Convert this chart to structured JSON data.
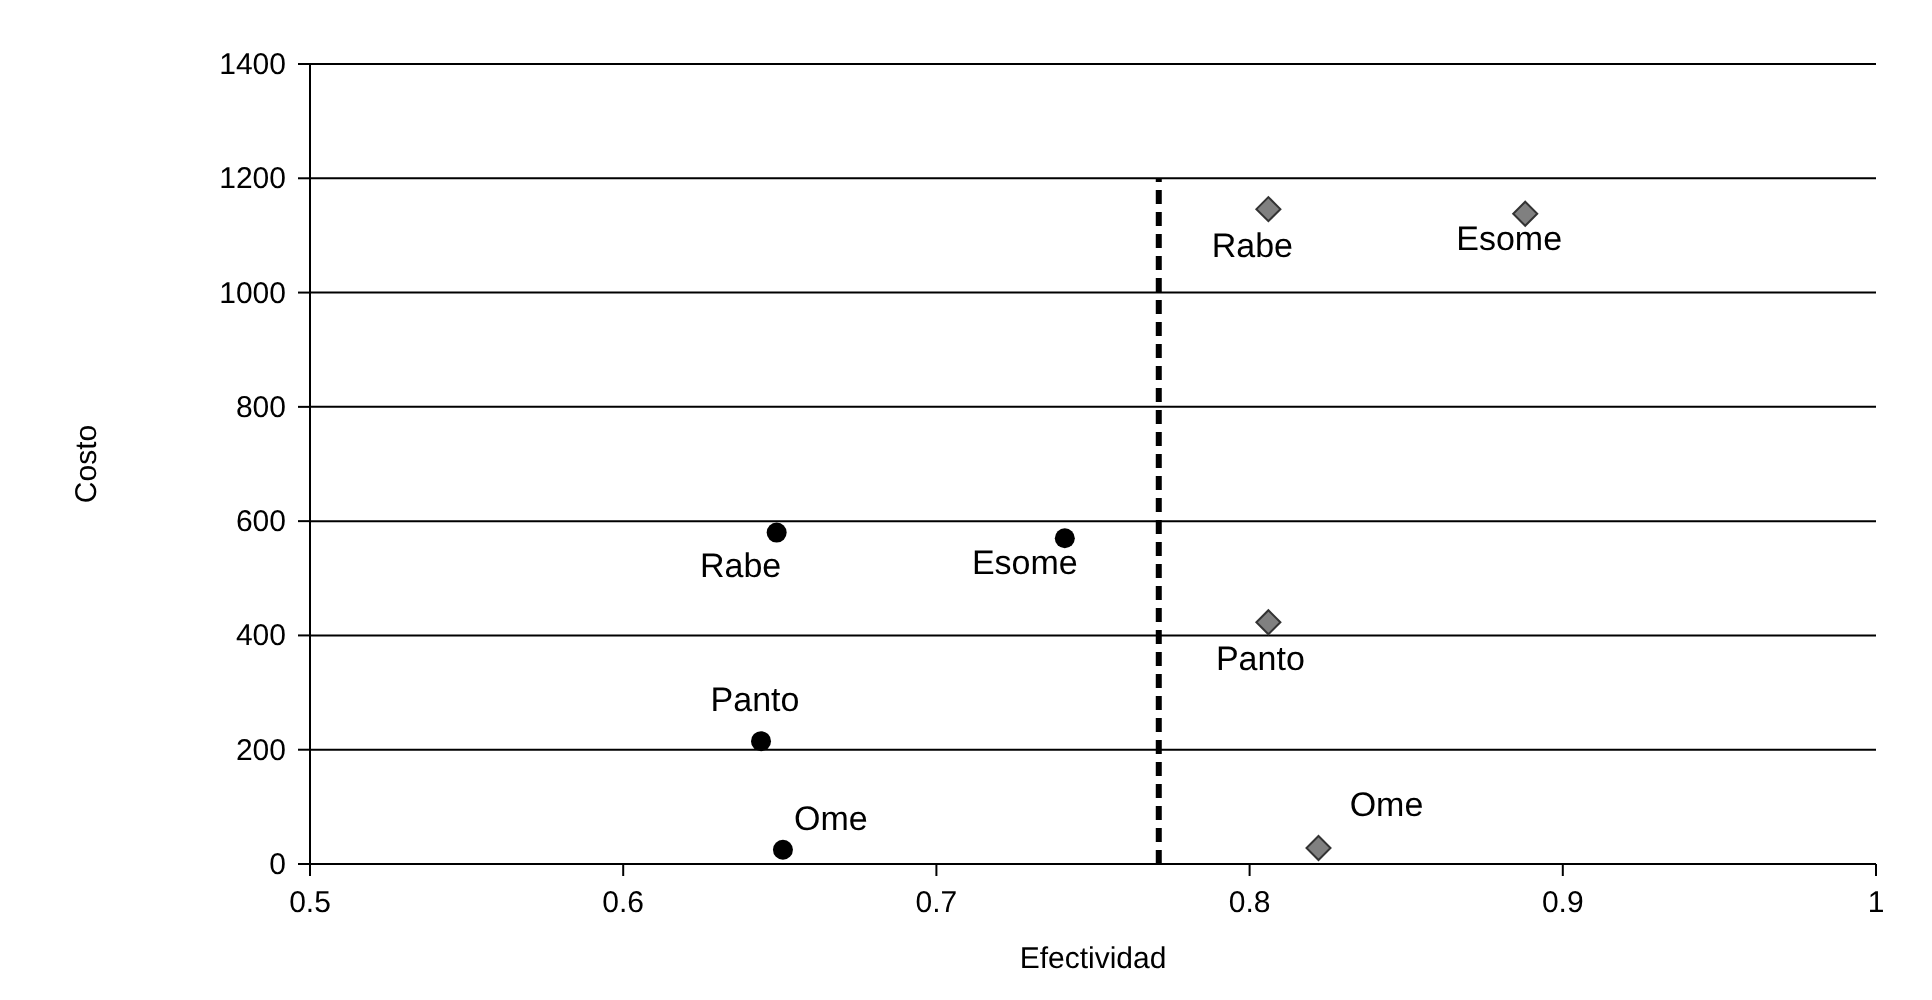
{
  "chart_data": {
    "type": "scatter",
    "xlabel": "Efectividad",
    "ylabel": "Costo",
    "xlim": [
      0.5,
      1
    ],
    "xticks": [
      0.5,
      0.6,
      0.7,
      0.8,
      0.9,
      1
    ],
    "ylim": [
      0,
      1400
    ],
    "yticks": [
      0,
      200,
      400,
      600,
      800,
      1000,
      1200,
      1400
    ],
    "grid": "y",
    "series": [
      {
        "color": "#000000",
        "marker": "circle",
        "x": [
          0.649,
          0.741,
          0.644,
          0.651
        ],
        "values": [
          580,
          570,
          215,
          25
        ]
      },
      {
        "color": "#808080",
        "marker": "diamond",
        "x": [
          0.806,
          0.888,
          0.806,
          0.822
        ],
        "values": [
          1146,
          1138,
          423,
          28
        ]
      },
      {
        "type": "line",
        "color": "#000000",
        "line_style": "dashed",
        "x": [
          0.771,
          0.771
        ],
        "values": [
          0,
          1200
        ]
      }
    ],
    "annotations": [
      {
        "text": "Rabe",
        "x": 0.649,
        "y": 580
      },
      {
        "text": "Esome",
        "x": 0.741,
        "y": 570
      },
      {
        "text": "Panto",
        "x": 0.644,
        "y": 215
      },
      {
        "text": "Ome",
        "x": 0.651,
        "y": 25
      },
      {
        "text": "Rabe",
        "x": 0.806,
        "y": 1146
      },
      {
        "text": "Esome",
        "x": 0.888,
        "y": 1138
      },
      {
        "text": "Panto",
        "x": 0.806,
        "y": 423
      },
      {
        "text": "Ome",
        "x": 0.822,
        "y": 28
      }
    ]
  }
}
